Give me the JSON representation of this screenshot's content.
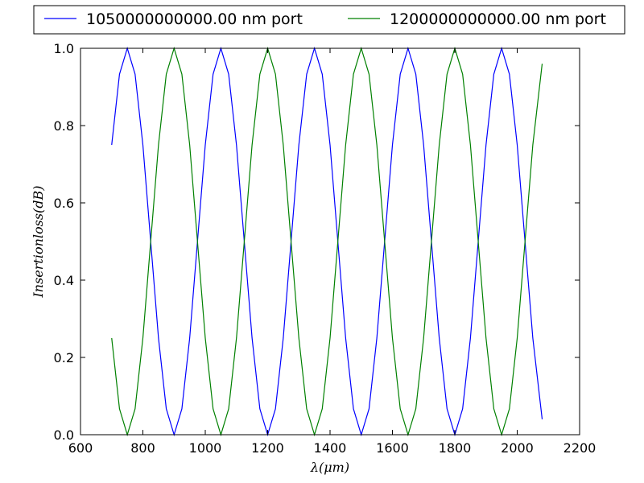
{
  "chart_data": {
    "type": "line",
    "xlabel": "λ(μm)",
    "ylabel": "Insertionloss(dB)",
    "xlim": [
      600,
      2200
    ],
    "ylim": [
      0.0,
      1.0
    ],
    "x_ticks": [
      "600",
      "800",
      "1000",
      "1200",
      "1400",
      "1600",
      "1800",
      "2000",
      "2200"
    ],
    "y_ticks": [
      "0.0",
      "0.2",
      "0.4",
      "0.6",
      "0.8",
      "1.0"
    ],
    "grid": false,
    "legend_placement": "top, above plot, two columns",
    "series": [
      {
        "name": "1050000000000.00 nm port",
        "color": "#0000ff",
        "x": [
          700,
          725,
          750,
          775,
          800,
          825,
          850,
          875,
          900,
          925,
          950,
          975,
          1000,
          1025,
          1050,
          1075,
          1100,
          1125,
          1150,
          1175,
          1200,
          1225,
          1250,
          1275,
          1300,
          1325,
          1350,
          1375,
          1400,
          1425,
          1450,
          1475,
          1500,
          1525,
          1550,
          1575,
          1600,
          1625,
          1650,
          1675,
          1700,
          1725,
          1750,
          1775,
          1800,
          1825,
          1850,
          1875,
          1900,
          1925,
          1950,
          1975,
          2000,
          2025,
          2050,
          2080
        ],
        "y": [
          0.75,
          0.933,
          1.0,
          0.933,
          0.75,
          0.5,
          0.25,
          0.067,
          0.0,
          0.067,
          0.25,
          0.5,
          0.75,
          0.933,
          1.0,
          0.933,
          0.75,
          0.5,
          0.25,
          0.067,
          0.0,
          0.067,
          0.25,
          0.5,
          0.75,
          0.933,
          1.0,
          0.933,
          0.75,
          0.5,
          0.25,
          0.067,
          0.0,
          0.067,
          0.25,
          0.5,
          0.75,
          0.933,
          1.0,
          0.933,
          0.75,
          0.5,
          0.25,
          0.067,
          0.0,
          0.067,
          0.25,
          0.5,
          0.75,
          0.933,
          1.0,
          0.933,
          0.75,
          0.5,
          0.25,
          0.04
        ]
      },
      {
        "name": "1200000000000.00 nm port",
        "color": "#008000",
        "x": [
          700,
          725,
          750,
          775,
          800,
          825,
          850,
          875,
          900,
          925,
          950,
          975,
          1000,
          1025,
          1050,
          1075,
          1100,
          1125,
          1150,
          1175,
          1200,
          1225,
          1250,
          1275,
          1300,
          1325,
          1350,
          1375,
          1400,
          1425,
          1450,
          1475,
          1500,
          1525,
          1550,
          1575,
          1600,
          1625,
          1650,
          1675,
          1700,
          1725,
          1750,
          1775,
          1800,
          1825,
          1850,
          1875,
          1900,
          1925,
          1950,
          1975,
          2000,
          2025,
          2050,
          2080
        ],
        "y": [
          0.25,
          0.067,
          0.0,
          0.067,
          0.25,
          0.5,
          0.75,
          0.933,
          1.0,
          0.933,
          0.75,
          0.5,
          0.25,
          0.067,
          0.0,
          0.067,
          0.25,
          0.5,
          0.75,
          0.933,
          1.0,
          0.933,
          0.75,
          0.5,
          0.25,
          0.067,
          0.0,
          0.067,
          0.25,
          0.5,
          0.75,
          0.933,
          1.0,
          0.933,
          0.75,
          0.5,
          0.25,
          0.067,
          0.0,
          0.067,
          0.25,
          0.5,
          0.75,
          0.933,
          1.0,
          0.933,
          0.75,
          0.5,
          0.25,
          0.067,
          0.0,
          0.067,
          0.25,
          0.5,
          0.75,
          0.96
        ]
      }
    ]
  }
}
